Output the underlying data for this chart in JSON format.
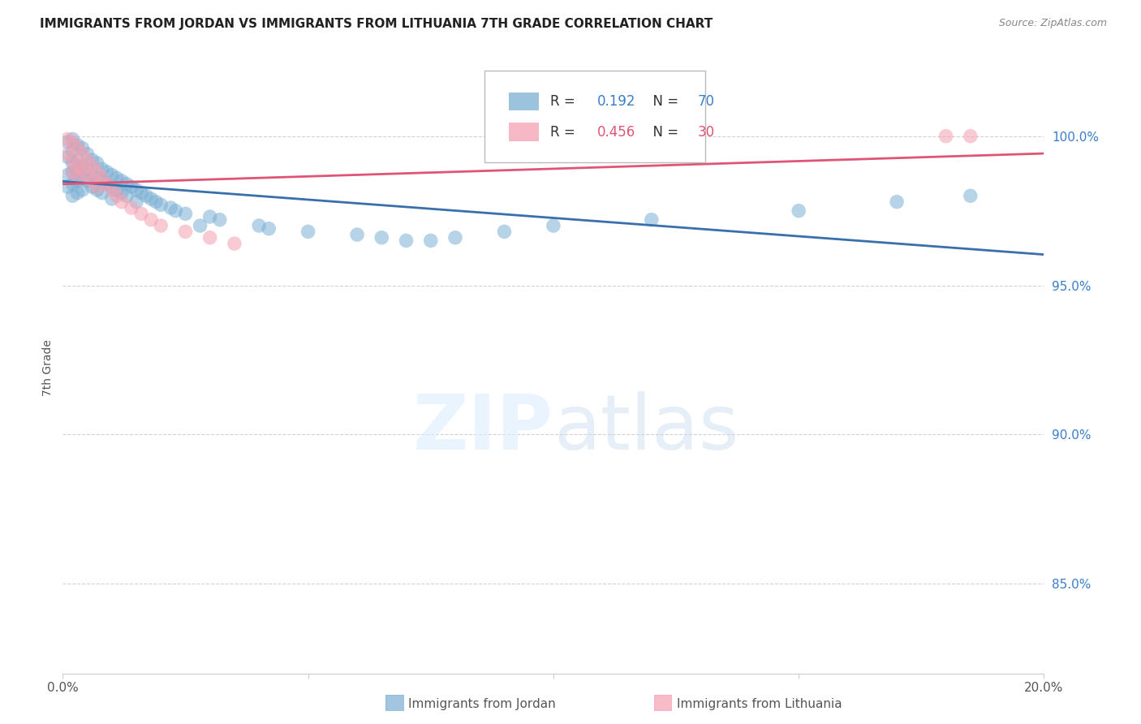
{
  "title": "IMMIGRANTS FROM JORDAN VS IMMIGRANTS FROM LITHUANIA 7TH GRADE CORRELATION CHART",
  "source": "Source: ZipAtlas.com",
  "ylabel": "7th Grade",
  "yticks": [
    "100.0%",
    "95.0%",
    "90.0%",
    "85.0%"
  ],
  "ytick_vals": [
    1.0,
    0.95,
    0.9,
    0.85
  ],
  "xlim": [
    0.0,
    0.2
  ],
  "ylim": [
    0.82,
    1.025
  ],
  "legend_jordan": "Immigrants from Jordan",
  "legend_lithuania": "Immigrants from Lithuania",
  "R_jordan": 0.192,
  "N_jordan": 70,
  "R_lithuania": 0.456,
  "N_lithuania": 30,
  "jordan_color": "#7bafd4",
  "lithuania_color": "#f4a0b0",
  "jordan_line_color": "#3a6fad",
  "lithuania_line_color": "#e05575",
  "background_color": "#ffffff",
  "jordan_x": [
    0.001,
    0.001,
    0.001,
    0.001,
    0.002,
    0.002,
    0.002,
    0.002,
    0.002,
    0.002,
    0.003,
    0.003,
    0.003,
    0.003,
    0.003,
    0.004,
    0.004,
    0.004,
    0.004,
    0.005,
    0.005,
    0.005,
    0.006,
    0.006,
    0.006,
    0.007,
    0.007,
    0.007,
    0.008,
    0.008,
    0.008,
    0.009,
    0.009,
    0.01,
    0.01,
    0.01,
    0.011,
    0.011,
    0.012,
    0.012,
    0.013,
    0.013,
    0.014,
    0.015,
    0.015,
    0.016,
    0.017,
    0.018,
    0.019,
    0.02,
    0.022,
    0.023,
    0.025,
    0.028,
    0.03,
    0.032,
    0.04,
    0.042,
    0.05,
    0.06,
    0.065,
    0.07,
    0.075,
    0.08,
    0.09,
    0.1,
    0.12,
    0.15,
    0.17,
    0.185
  ],
  "jordan_y": [
    0.998,
    0.993,
    0.987,
    0.983,
    0.999,
    0.995,
    0.991,
    0.988,
    0.984,
    0.98,
    0.997,
    0.992,
    0.988,
    0.985,
    0.981,
    0.996,
    0.99,
    0.986,
    0.982,
    0.994,
    0.989,
    0.985,
    0.992,
    0.987,
    0.983,
    0.991,
    0.986,
    0.982,
    0.989,
    0.985,
    0.981,
    0.988,
    0.984,
    0.987,
    0.983,
    0.979,
    0.986,
    0.982,
    0.985,
    0.981,
    0.984,
    0.98,
    0.983,
    0.982,
    0.978,
    0.981,
    0.98,
    0.979,
    0.978,
    0.977,
    0.976,
    0.975,
    0.974,
    0.97,
    0.973,
    0.972,
    0.97,
    0.969,
    0.968,
    0.967,
    0.966,
    0.965,
    0.965,
    0.966,
    0.968,
    0.97,
    0.972,
    0.975,
    0.978,
    0.98
  ],
  "lithuania_x": [
    0.001,
    0.001,
    0.002,
    0.002,
    0.002,
    0.003,
    0.003,
    0.003,
    0.004,
    0.004,
    0.005,
    0.005,
    0.006,
    0.006,
    0.007,
    0.007,
    0.008,
    0.009,
    0.01,
    0.011,
    0.012,
    0.014,
    0.016,
    0.018,
    0.02,
    0.025,
    0.03,
    0.035,
    0.18,
    0.185
  ],
  "lithuania_y": [
    0.999,
    0.994,
    0.998,
    0.992,
    0.988,
    0.996,
    0.99,
    0.986,
    0.994,
    0.989,
    0.992,
    0.987,
    0.99,
    0.985,
    0.988,
    0.983,
    0.986,
    0.984,
    0.982,
    0.98,
    0.978,
    0.976,
    0.974,
    0.972,
    0.97,
    0.968,
    0.966,
    0.964,
    1.0,
    1.0
  ]
}
